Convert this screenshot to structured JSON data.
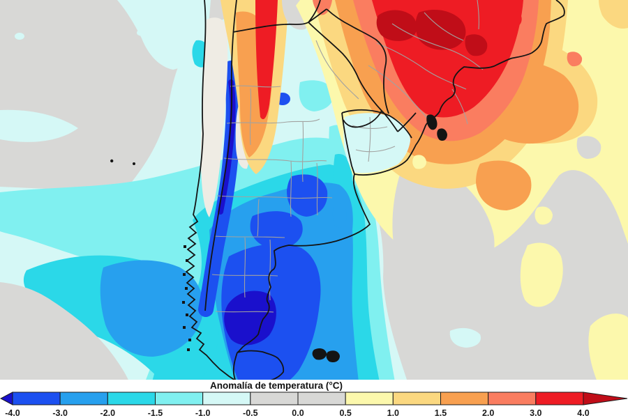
{
  "title": {
    "text": "Anomalía de temperatura (°C)"
  },
  "colorbar": {
    "boundary_labels": [
      "-4.0",
      "-3.0",
      "-2.0",
      "-1.5",
      "-1.0",
      "-0.5",
      "0.0",
      "0.5",
      "1.0",
      "1.5",
      "2.0",
      "3.0",
      "4.0"
    ],
    "left_arrow_color": "#1a10cc",
    "right_arrow_color": "#c00d18",
    "segment_colors": [
      "#1c50f0",
      "#27a0ee",
      "#2bd8e8",
      "#80f0f0",
      "#d5f8f6",
      "#d8d8d6",
      "#d8d8d6",
      "#fcf8ac",
      "#fbd880",
      "#f8a050",
      "#fa7d60",
      "#ee1c24"
    ],
    "outline_color": "#1a1a1a",
    "label_color": "#1a1a1a"
  },
  "legend_scale": [
    {
      "range": "< -4.0",
      "color": "#1a10cc"
    },
    {
      "range": "-4.0 to -3.0",
      "color": "#1c50f0"
    },
    {
      "range": "-3.0 to -2.0",
      "color": "#27a0ee"
    },
    {
      "range": "-2.0 to -1.5",
      "color": "#2bd8e8"
    },
    {
      "range": "-1.5 to -1.0",
      "color": "#80f0f0"
    },
    {
      "range": "-1.0 to -0.5",
      "color": "#d5f8f6"
    },
    {
      "range": "-0.5 to 0.5",
      "color": "#d8d8d6"
    },
    {
      "range": "0.5 to 1.0",
      "color": "#fcf8ac"
    },
    {
      "range": "1.0 to 1.5",
      "color": "#fbd880"
    },
    {
      "range": "1.5 to 2.0",
      "color": "#f8a050"
    },
    {
      "range": "2.0 to 3.0",
      "color": "#fa7d60"
    },
    {
      "range": "3.0 to 4.0",
      "color": "#ee1c24"
    },
    {
      "range": "> 4.0",
      "color": "#c00d18"
    }
  ],
  "map": {
    "palette": {
      "navy": "#1a10cc",
      "blue": "#1c50f0",
      "azure": "#27a0ee",
      "brightcyan": "#2bd8e8",
      "cyan80": "#80f0f0",
      "palecyan": "#d5f8f6",
      "gray": "#d8d8d6",
      "paleyellow": "#fcf8ac",
      "tan": "#fbd880",
      "orange": "#f8a050",
      "salmon": "#fa7d60",
      "red": "#ee1c24",
      "darkred": "#c00d18",
      "whitish": "#efece4",
      "coast": "#141414",
      "admin": "#a2a2a0"
    }
  }
}
